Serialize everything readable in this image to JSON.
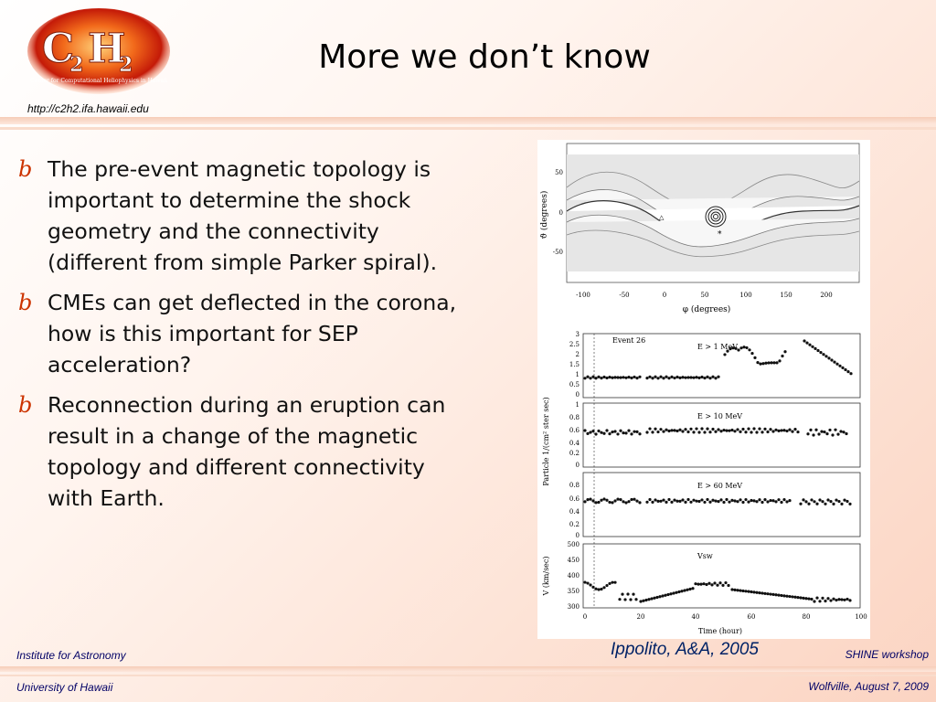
{
  "header": {
    "title": "More we don’t know",
    "url": "http://c2h2.ifa.hawaii.edu",
    "logo_text": "C2H2",
    "logo_subtitle": "Center for Computational Heliophysics in Hawaii"
  },
  "bullets": [
    {
      "symbol": "b",
      "text": "The pre-event magnetic topology is important to determine the shock geometry and the connectivity (different from simple Parker spiral)."
    },
    {
      "symbol": "b",
      "text": "CMEs can get deflected in the corona, how is this important for SEP acceleration?"
    },
    {
      "symbol": "b",
      "text": "Reconnection during an eruption can result in a change of the magnetic topology and different connectivity with Earth."
    }
  ],
  "figure": {
    "caption": "Ippolito, A&A, 2005",
    "top_panel": {
      "xlabel": "φ (degrees)",
      "ylabel": "ϑ (degrees)",
      "x_ticks": [
        "-100",
        "-50",
        "0",
        "50",
        "100",
        "150",
        "200"
      ],
      "y_ticks": [
        "50",
        "0",
        "-50"
      ]
    },
    "bottom_panels": {
      "shared_ylabel": "Particle 1/(cm² ster sec)",
      "xlabel": "Time (hour)",
      "x_ticks": [
        "0",
        "20",
        "40",
        "60",
        "80",
        "100"
      ],
      "panel1": {
        "event": "Event 26",
        "label": "E > 1 MeV",
        "y_ticks": [
          "3",
          "2.5",
          "2",
          "1.5",
          "1",
          "0.5",
          "0"
        ]
      },
      "panel2": {
        "label": "E > 10 MeV",
        "y_ticks": [
          "1",
          "0.8",
          "0.6",
          "0.4",
          "0.2",
          "0"
        ]
      },
      "panel3": {
        "label": "E > 60 MeV",
        "y_ticks": [
          "0.8",
          "0.6",
          "0.4",
          "0.2",
          "0"
        ]
      },
      "panel4": {
        "label": "Vsw",
        "ylabel": "V (km/sec)",
        "y_ticks": [
          "500",
          "450",
          "400",
          "350",
          "300"
        ]
      }
    }
  },
  "footer": {
    "left_top": "Institute for Astronomy",
    "left_bottom": "University of Hawaii",
    "right_top": "SHINE workshop",
    "right_bottom": "Wolfville, August 7, 2009"
  }
}
